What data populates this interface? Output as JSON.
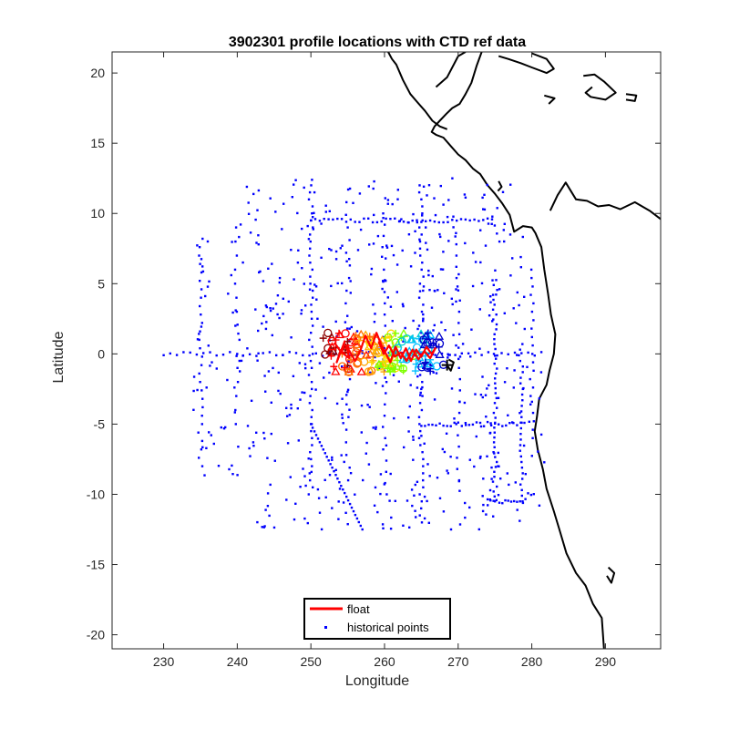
{
  "chart_data": {
    "type": "scatter",
    "title": "3902301 profile locations with CTD ref data",
    "xlabel": "Longitude",
    "ylabel": "Latitude",
    "xlim": [
      223,
      297.5
    ],
    "ylim": [
      -21,
      21.5
    ],
    "xticks": [
      230,
      240,
      250,
      260,
      270,
      280,
      290
    ],
    "yticks": [
      -20,
      -15,
      -10,
      -5,
      0,
      5,
      10,
      15,
      20
    ],
    "grid": false,
    "legend": {
      "position": "bottom-center",
      "entries": [
        {
          "label": "float",
          "color": "#ff0000",
          "marker": "line"
        },
        {
          "label": "historical points",
          "color": "#0000ff",
          "marker": "dot"
        }
      ]
    },
    "colors": {
      "historical": "#0000ff",
      "float": "#ff0000",
      "coast": "#000000"
    },
    "series": [
      {
        "name": "float",
        "kind": "line",
        "x": [
          253.2,
          254.0,
          253.5,
          254.6,
          254.2,
          255.2,
          254.8,
          256.0,
          256.7,
          257.4,
          258.2,
          258.9,
          259.6,
          260.1,
          260.8,
          261.5,
          262.2,
          262.9,
          263.6,
          264.3,
          265.0,
          265.7,
          266.4,
          266.9,
          266.2,
          265.4,
          264.6,
          263.8,
          263.0,
          262.2,
          261.4,
          260.6,
          259.9,
          259.2
        ],
        "y": [
          0.8,
          0.2,
          -0.6,
          0.9,
          0.1,
          -0.3,
          0.6,
          -0.5,
          0.2,
          1.3,
          0.4,
          1.5,
          0.6,
          0.1,
          -0.6,
          0.5,
          -0.3,
          0.4,
          -0.5,
          0.3,
          -0.2,
          0.5,
          0.0,
          0.4,
          -0.3,
          0.2,
          -0.4,
          0.3,
          -0.5,
          0.1,
          -0.2,
          0.6,
          0.0,
          0.9
        ]
      },
      {
        "name": "historical points",
        "kind": "scatter",
        "lines": [
          {
            "axis": "x",
            "at": 250,
            "from": -10,
            "to": 12,
            "step": 0.5
          },
          {
            "axis": "x",
            "at": 275,
            "from": -10.5,
            "to": 5,
            "step": 0.35
          },
          {
            "axis": "x",
            "at": 265,
            "from": -12,
            "to": 12,
            "step": 0.5
          },
          {
            "axis": "x",
            "at": 235,
            "from": -8,
            "to": 8.5,
            "step": 0.6
          },
          {
            "axis": "x",
            "at": 260,
            "from": -10,
            "to": 10,
            "step": 0.8
          },
          {
            "axis": "x",
            "at": 270,
            "from": -9,
            "to": 9,
            "step": 0.8
          },
          {
            "axis": "x",
            "at": 255,
            "from": -9,
            "to": 12,
            "step": 0.9
          },
          {
            "axis": "x",
            "at": 240,
            "from": -5,
            "to": 9,
            "step": 1.0
          },
          {
            "axis": "x",
            "at": 278.5,
            "from": -10.5,
            "to": 1,
            "step": 0.4
          },
          {
            "axis": "x",
            "at": 280,
            "from": -6,
            "to": 6,
            "step": 0.6
          },
          {
            "axis": "y",
            "at": 0,
            "from": 230,
            "to": 282,
            "step": 0.9
          },
          {
            "axis": "y",
            "at": 9.5,
            "from": 250,
            "to": 275,
            "step": 0.6
          },
          {
            "axis": "y",
            "at": -10.5,
            "from": 274,
            "to": 279,
            "step": 0.4
          },
          {
            "axis": "y",
            "at": -5,
            "from": 265,
            "to": 279,
            "step": 0.5
          }
        ],
        "diagonal": {
          "x": [
            250,
            257
          ],
          "y": [
            -5,
            -12.5
          ],
          "count": 30
        },
        "scatter_extent": {
          "x": [
            234,
            282
          ],
          "y": [
            -12.5,
            12.5
          ]
        },
        "scatter_count": 620
      }
    ],
    "float_markers": {
      "x_range": [
        252.5,
        267.5
      ],
      "y_range": [
        -1.2,
        1.6
      ],
      "colors": [
        "#8b0000",
        "#ff0000",
        "#ff6a00",
        "#ffa500",
        "#ffd700",
        "#7fff00",
        "#00ced1",
        "#00bfff",
        "#0000cd"
      ],
      "last_color": "#000000",
      "last_position": [
        268.5,
        -0.8
      ]
    },
    "coastlines": [
      {
        "name": "north-central-america",
        "points": [
          [
            273.2,
            21.5
          ],
          [
            272.5,
            20.5
          ],
          [
            271.8,
            19.3
          ],
          [
            271.0,
            18.5
          ],
          [
            270.2,
            17.8
          ],
          [
            269.2,
            17.5
          ],
          [
            268.4,
            17.1
          ],
          [
            267.5,
            16.6
          ],
          [
            266.8,
            16.2
          ],
          [
            266.4,
            15.8
          ],
          [
            267.0,
            15.6
          ],
          [
            268.0,
            15.4
          ],
          [
            269.0,
            14.8
          ],
          [
            270.0,
            14.2
          ],
          [
            271.0,
            13.8
          ],
          [
            272.0,
            13.2
          ],
          [
            273.0,
            12.8
          ],
          [
            274.0,
            12.0
          ],
          [
            275.0,
            11.4
          ],
          [
            276.0,
            10.7
          ],
          [
            277.0,
            9.9
          ],
          [
            277.6,
            8.7
          ],
          [
            278.8,
            9.1
          ],
          [
            280.0,
            9.0
          ],
          [
            280.5,
            8.6
          ],
          [
            281.3,
            7.6
          ],
          [
            281.7,
            6.0
          ],
          [
            282.2,
            4.3
          ],
          [
            282.6,
            2.8
          ],
          [
            283.2,
            1.4
          ],
          [
            283.0,
            0.0
          ],
          [
            282.4,
            -1.2
          ],
          [
            282.0,
            -2.2
          ],
          [
            281.0,
            -3.2
          ],
          [
            280.7,
            -4.5
          ],
          [
            280.4,
            -5.5
          ],
          [
            280.8,
            -6.8
          ],
          [
            281.5,
            -8.2
          ],
          [
            282.0,
            -9.6
          ],
          [
            283.0,
            -11.2
          ],
          [
            283.8,
            -12.6
          ],
          [
            284.7,
            -14.2
          ],
          [
            286.0,
            -15.6
          ],
          [
            287.3,
            -16.5
          ],
          [
            288.3,
            -17.8
          ],
          [
            289.5,
            -18.8
          ],
          [
            289.8,
            -21.0
          ]
        ]
      },
      {
        "name": "mexico-west-coast",
        "points": [
          [
            260.5,
            21.5
          ],
          [
            261.0,
            21.0
          ],
          [
            261.6,
            20.6
          ],
          [
            262.5,
            19.5
          ],
          [
            263.5,
            18.5
          ],
          [
            264.5,
            17.9
          ],
          [
            265.5,
            17.3
          ],
          [
            266.5,
            16.6
          ],
          [
            267.5,
            16.2
          ],
          [
            268.5,
            16.0
          ]
        ]
      },
      {
        "name": "cuba",
        "points": [
          [
            275.5,
            21.2
          ],
          [
            276.8,
            21.0
          ],
          [
            278.5,
            20.7
          ],
          [
            280.0,
            20.4
          ],
          [
            282.0,
            20.0
          ],
          [
            283.0,
            20.3
          ],
          [
            282.0,
            21.0
          ],
          [
            280.0,
            21.4
          ]
        ]
      },
      {
        "name": "hispaniola",
        "points": [
          [
            287.0,
            19.8
          ],
          [
            288.5,
            19.9
          ],
          [
            289.8,
            19.4
          ],
          [
            291.4,
            18.6
          ],
          [
            290.0,
            18.1
          ],
          [
            288.0,
            18.3
          ],
          [
            287.3,
            18.6
          ],
          [
            288.2,
            19.0
          ]
        ]
      },
      {
        "name": "jamaica",
        "points": [
          [
            281.7,
            18.4
          ],
          [
            283.1,
            18.2
          ],
          [
            282.3,
            17.8
          ]
        ]
      },
      {
        "name": "puerto-rico",
        "points": [
          [
            292.8,
            18.5
          ],
          [
            294.2,
            18.4
          ],
          [
            294.0,
            18.0
          ],
          [
            292.8,
            18.1
          ]
        ]
      },
      {
        "name": "yucatan",
        "points": [
          [
            267.0,
            19.0
          ],
          [
            268.5,
            19.7
          ],
          [
            270.0,
            21.2
          ],
          [
            271.0,
            21.5
          ]
        ]
      },
      {
        "name": "venezuela-coast",
        "points": [
          [
            282.5,
            10.2
          ],
          [
            283.5,
            11.3
          ],
          [
            284.6,
            12.2
          ],
          [
            286.0,
            11.0
          ],
          [
            287.5,
            10.9
          ],
          [
            289.0,
            10.5
          ],
          [
            290.5,
            10.6
          ],
          [
            292.0,
            10.3
          ],
          [
            294.0,
            10.8
          ],
          [
            296.0,
            10.2
          ],
          [
            297.5,
            9.6
          ]
        ]
      },
      {
        "name": "galapagos",
        "points": [
          [
            268.7,
            -0.4
          ],
          [
            269.4,
            -0.6
          ],
          [
            269.0,
            -1.2
          ],
          [
            268.6,
            -0.9
          ]
        ]
      },
      {
        "name": "lake-titicaca",
        "points": [
          [
            290.4,
            -15.2
          ],
          [
            291.2,
            -15.6
          ],
          [
            290.8,
            -16.3
          ],
          [
            290.2,
            -15.8
          ]
        ]
      },
      {
        "name": "panama-lakes",
        "points": [
          [
            275.5,
            12.3
          ],
          [
            275.9,
            11.9
          ],
          [
            275.4,
            11.6
          ]
        ]
      }
    ]
  }
}
